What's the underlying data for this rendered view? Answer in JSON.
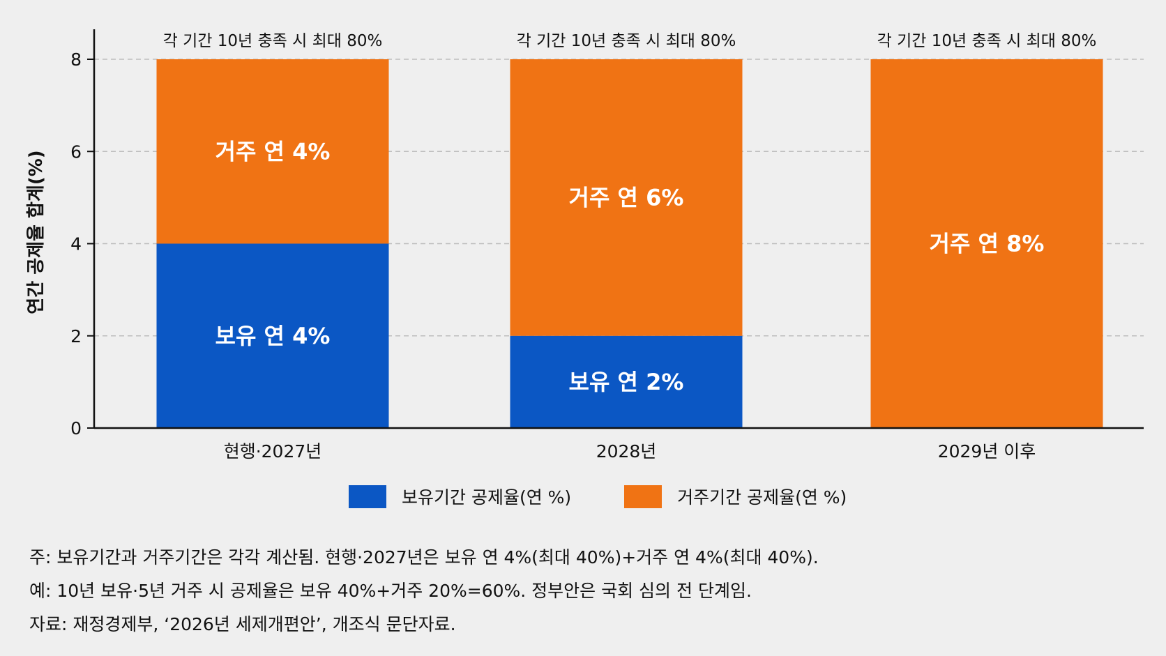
{
  "chart_data": {
    "type": "bar",
    "stacked": true,
    "categories": [
      "현행·2027년",
      "2028년",
      "2029년 이후"
    ],
    "series": [
      {
        "name": "보유기간 공제율(연 %)",
        "color": "#0b57c4",
        "values": [
          4,
          2,
          0
        ],
        "labels": [
          "보유 연 4%",
          "보유 연 2%",
          ""
        ]
      },
      {
        "name": "거주기간 공제율(연 %)",
        "color": "#f07314",
        "values": [
          4,
          6,
          8
        ],
        "labels": [
          "거주 연 4%",
          "거주 연 6%",
          "거주 연 8%"
        ]
      }
    ],
    "top_labels": [
      "각 기간 10년 충족 시 최대 80%",
      "각 기간 10년 충족 시 최대 80%",
      "각 기간 10년 충족 시 최대 80%"
    ],
    "ylabel": "연간 공제율 합계(%)",
    "xlabel": "",
    "ylim": [
      0,
      8.6
    ],
    "yticks": [
      0,
      2,
      4,
      6,
      8
    ],
    "grid": true,
    "legend_position": "bottom-center"
  },
  "notes": [
    "주: 보유기간과 거주기간은 각각 계산됨. 현행·2027년은 보유 연 4%(최대 40%)+거주 연 4%(최대 40%).",
    "예: 10년 보유·5년 거주 시 공제율은 보유 40%+거주 20%=60%. 정부안은 국회 심의 전 단계임.",
    "자료: 재정경제부, ‘2026년 세제개편안’, 개조식 문단자료."
  ]
}
